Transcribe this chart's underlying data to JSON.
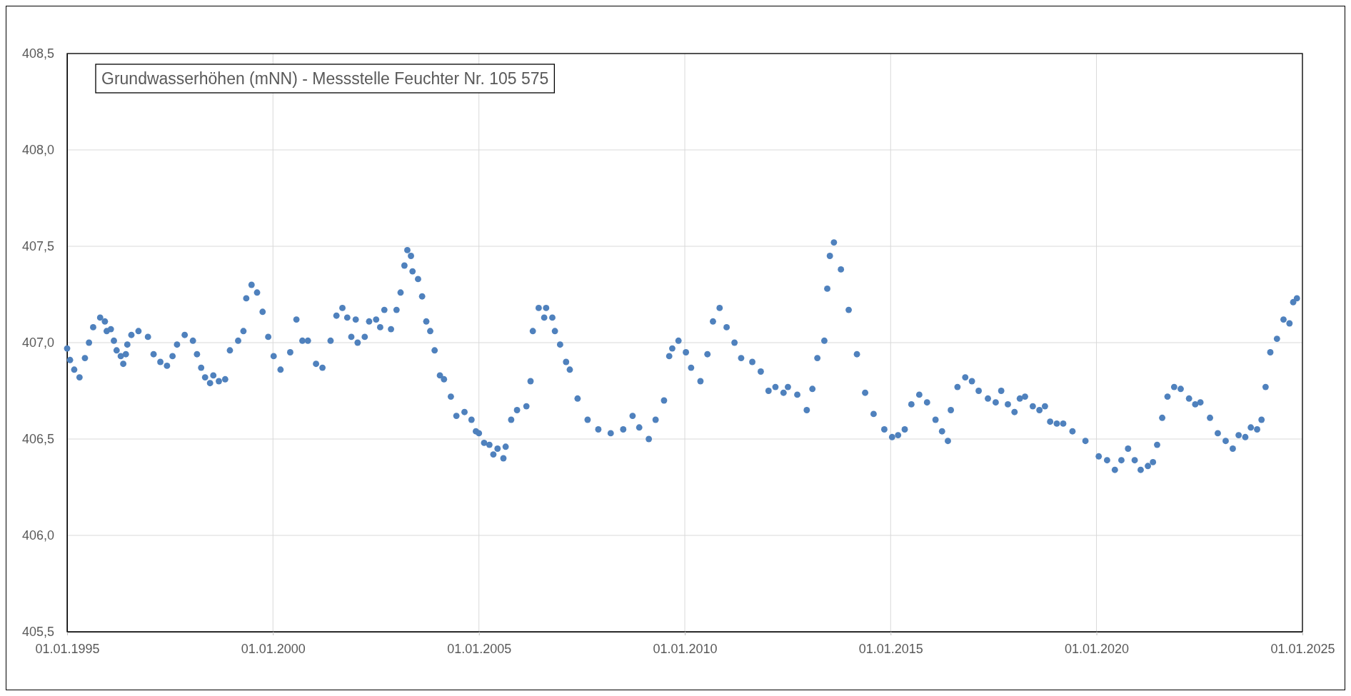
{
  "chart_data": {
    "type": "scatter",
    "title": "Grundwasserhöhen (mNN) - Messstelle Feuchter Nr. 105 575",
    "xlim": [
      "1995-01-01",
      "2025-01-01"
    ],
    "xticks": [
      {
        "value": "1995-01-01",
        "label": "01.01.1995"
      },
      {
        "value": "2000-01-01",
        "label": "01.01.2000"
      },
      {
        "value": "2005-01-01",
        "label": "01.01.2005"
      },
      {
        "value": "2010-01-01",
        "label": "01.01.2010"
      },
      {
        "value": "2015-01-01",
        "label": "01.01.2015"
      },
      {
        "value": "2020-01-01",
        "label": "01.01.2020"
      },
      {
        "value": "2025-01-01",
        "label": "01.01.2025"
      }
    ],
    "ylim": [
      405.5,
      408.5
    ],
    "yticks": [
      {
        "value": 405.5,
        "label": "405,5"
      },
      {
        "value": 406,
        "label": "406,0"
      },
      {
        "value": 406.5,
        "label": "406,5"
      },
      {
        "value": 407,
        "label": "407,0"
      },
      {
        "value": 407.5,
        "label": "407,5"
      },
      {
        "value": 408,
        "label": "408,0"
      },
      {
        "value": 408.5,
        "label": "408,5"
      }
    ],
    "grid": true,
    "marker": "circle",
    "series": [
      {
        "color": "#4f81bd",
        "x": [
          "1995-01-01",
          "1995-01-27",
          "1995-03-05",
          "1995-04-21",
          "1995-06-08",
          "1995-07-14",
          "1995-08-20",
          "1995-10-21",
          "1995-12-02",
          "1995-12-18",
          "1996-01-24",
          "1996-02-20",
          "1996-03-15",
          "1996-04-21",
          "1996-05-13",
          "1996-06-05",
          "1996-06-18",
          "1996-07-24",
          "1996-09-25",
          "1996-12-18",
          "1997-02-06",
          "1997-04-07",
          "1997-06-05",
          "1997-07-24",
          "1997-09-02",
          "1997-11-09",
          "1998-01-21",
          "1998-02-26",
          "1998-04-04",
          "1998-05-09",
          "1998-06-22",
          "1998-07-21",
          "1998-09-08",
          "1998-11-03",
          "1998-12-15",
          "1999-02-26",
          "1999-04-14",
          "1999-05-09",
          "1999-06-25",
          "1999-08-13",
          "1999-10-01",
          "1999-11-20",
          "2000-01-07",
          "2000-03-08",
          "2000-06-02",
          "2000-07-27",
          "2000-09-18",
          "2000-11-06",
          "2001-01-17",
          "2001-03-15",
          "2001-05-26",
          "2001-07-17",
          "2001-09-08",
          "2001-10-21",
          "2001-11-26",
          "2002-01-04",
          "2002-01-21",
          "2002-03-25",
          "2002-05-03",
          "2002-07-04",
          "2002-08-09",
          "2002-09-15",
          "2002-11-13",
          "2003-01-01",
          "2003-02-06",
          "2003-03-12",
          "2003-04-07",
          "2003-05-09",
          "2003-05-23",
          "2003-07-11",
          "2003-08-16",
          "2003-09-22",
          "2003-10-27",
          "2003-12-05",
          "2004-01-21",
          "2004-02-26",
          "2004-04-27",
          "2004-06-15",
          "2004-08-26",
          "2004-10-27",
          "2004-12-05",
          "2005-01-01",
          "2005-02-16",
          "2005-04-04",
          "2005-05-09",
          "2005-06-15",
          "2005-08-06",
          "2005-08-26",
          "2005-10-14",
          "2005-12-05",
          "2006-02-26",
          "2006-04-04",
          "2006-04-24",
          "2006-06-15",
          "2006-08-03",
          "2006-08-20",
          "2006-10-14",
          "2006-11-06",
          "2006-12-22",
          "2007-02-13",
          "2007-03-18",
          "2007-05-26",
          "2007-08-23",
          "2007-11-26",
          "2008-03-15",
          "2008-07-04",
          "2008-09-25",
          "2008-11-23",
          "2009-02-16",
          "2009-04-17",
          "2009-07-01",
          "2009-08-16",
          "2009-09-12",
          "2009-11-06",
          "2010-01-11",
          "2010-02-26",
          "2010-05-20",
          "2010-07-21",
          "2010-09-08",
          "2010-11-06",
          "2011-01-07",
          "2011-03-18",
          "2011-05-16",
          "2011-08-23",
          "2011-11-06",
          "2012-01-14",
          "2012-03-15",
          "2012-05-26",
          "2012-07-04",
          "2012-09-25",
          "2012-12-18",
          "2013-02-06",
          "2013-03-22",
          "2013-05-23",
          "2013-06-18",
          "2013-07-11",
          "2013-08-16",
          "2013-10-17",
          "2013-12-25",
          "2014-03-08",
          "2014-05-20",
          "2014-08-03",
          "2014-11-06",
          "2015-01-14",
          "2015-03-08",
          "2015-05-06",
          "2015-07-04",
          "2015-09-12",
          "2015-11-20",
          "2016-02-03",
          "2016-04-01",
          "2016-05-23",
          "2016-06-18",
          "2016-08-16",
          "2016-10-24",
          "2016-12-22",
          "2017-02-20",
          "2017-05-13",
          "2017-07-21",
          "2017-09-08",
          "2017-11-06",
          "2018-01-04",
          "2018-02-20",
          "2018-04-07",
          "2018-06-15",
          "2018-08-13",
          "2018-10-01",
          "2018-11-16",
          "2019-01-14",
          "2019-03-12",
          "2019-06-02",
          "2019-09-25",
          "2020-01-21",
          "2020-04-04",
          "2020-06-12",
          "2020-08-09",
          "2020-10-07",
          "2020-12-05",
          "2021-01-27",
          "2021-04-01",
          "2021-05-16",
          "2021-06-22",
          "2021-08-06",
          "2021-09-22",
          "2021-11-20",
          "2022-01-17",
          "2022-04-01",
          "2022-05-26",
          "2022-07-11",
          "2022-10-04",
          "2022-12-12",
          "2023-02-20",
          "2023-04-24",
          "2023-06-15",
          "2023-08-13",
          "2023-10-01",
          "2023-11-26",
          "2024-01-04",
          "2024-02-09",
          "2024-03-22",
          "2024-05-20",
          "2024-07-17",
          "2024-09-08",
          "2024-10-11",
          "2024-11-13"
        ],
        "values": [
          406.97,
          406.91,
          406.86,
          406.82,
          406.92,
          407.0,
          407.08,
          407.13,
          407.11,
          407.06,
          407.07,
          407.01,
          406.96,
          406.93,
          406.89,
          406.94,
          406.99,
          407.04,
          407.06,
          407.03,
          406.94,
          406.9,
          406.88,
          406.93,
          406.99,
          407.04,
          407.01,
          406.94,
          406.87,
          406.82,
          406.79,
          406.83,
          406.8,
          406.81,
          406.96,
          407.01,
          407.06,
          407.23,
          407.3,
          407.26,
          407.16,
          407.03,
          406.93,
          406.86,
          406.95,
          407.12,
          407.01,
          407.01,
          406.89,
          406.87,
          407.01,
          407.14,
          407.18,
          407.13,
          407.03,
          407.12,
          407.0,
          407.03,
          407.11,
          407.12,
          407.08,
          407.17,
          407.07,
          407.17,
          407.26,
          407.4,
          407.48,
          407.45,
          407.37,
          407.33,
          407.24,
          407.11,
          407.06,
          406.96,
          406.83,
          406.81,
          406.72,
          406.62,
          406.64,
          406.6,
          406.54,
          406.53,
          406.48,
          406.47,
          406.42,
          406.45,
          406.4,
          406.46,
          406.6,
          406.65,
          406.67,
          406.8,
          407.06,
          407.18,
          407.13,
          407.18,
          407.13,
          407.06,
          406.99,
          406.9,
          406.86,
          406.71,
          406.6,
          406.55,
          406.53,
          406.55,
          406.62,
          406.56,
          406.5,
          406.6,
          406.7,
          406.93,
          406.97,
          407.01,
          406.95,
          406.87,
          406.8,
          406.94,
          407.11,
          407.18,
          407.08,
          407.0,
          406.92,
          406.9,
          406.85,
          406.75,
          406.77,
          406.74,
          406.77,
          406.73,
          406.65,
          406.76,
          406.92,
          407.01,
          407.28,
          407.45,
          407.52,
          407.38,
          407.17,
          406.94,
          406.74,
          406.63,
          406.55,
          406.51,
          406.52,
          406.55,
          406.68,
          406.73,
          406.69,
          406.6,
          406.54,
          406.49,
          406.65,
          406.77,
          406.82,
          406.8,
          406.75,
          406.71,
          406.69,
          406.75,
          406.68,
          406.64,
          406.71,
          406.72,
          406.67,
          406.65,
          406.67,
          406.59,
          406.58,
          406.58,
          406.54,
          406.49,
          406.41,
          406.39,
          406.34,
          406.39,
          406.45,
          406.39,
          406.34,
          406.36,
          406.38,
          406.47,
          406.61,
          406.72,
          406.77,
          406.76,
          406.71,
          406.68,
          406.69,
          406.61,
          406.53,
          406.49,
          406.45,
          406.52,
          406.51,
          406.56,
          406.55,
          406.6,
          406.77,
          406.95,
          407.02,
          407.12,
          407.1,
          407.21,
          407.23
        ]
      }
    ]
  }
}
